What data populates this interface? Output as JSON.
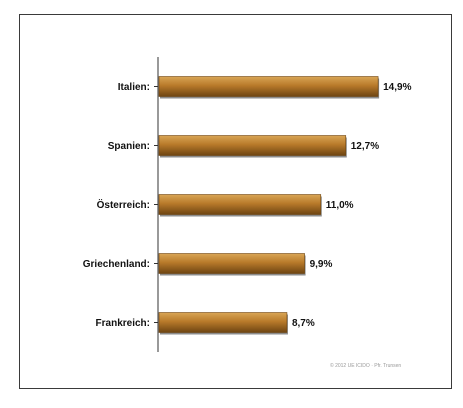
{
  "chart_data": {
    "type": "bar",
    "orientation": "horizontal",
    "categories": [
      "Italien:",
      "Spanien:",
      "Österreich:",
      "Griechenland:",
      "Frankreich:"
    ],
    "values": [
      14.9,
      12.7,
      11.0,
      9.9,
      8.7
    ],
    "value_labels": [
      "14,9%",
      "12,7%",
      "11,0%",
      "9,9%",
      "8,7%"
    ],
    "xlim": [
      0,
      17
    ],
    "grid": false,
    "legend": "none",
    "colors": {
      "bar": "#b87a2a",
      "bar_dark": "#6e4512",
      "bar_light": "#d9a656",
      "axis": "#333333"
    }
  },
  "credit": "© 2012 UE ICIDO · Pfr. Trunsen"
}
